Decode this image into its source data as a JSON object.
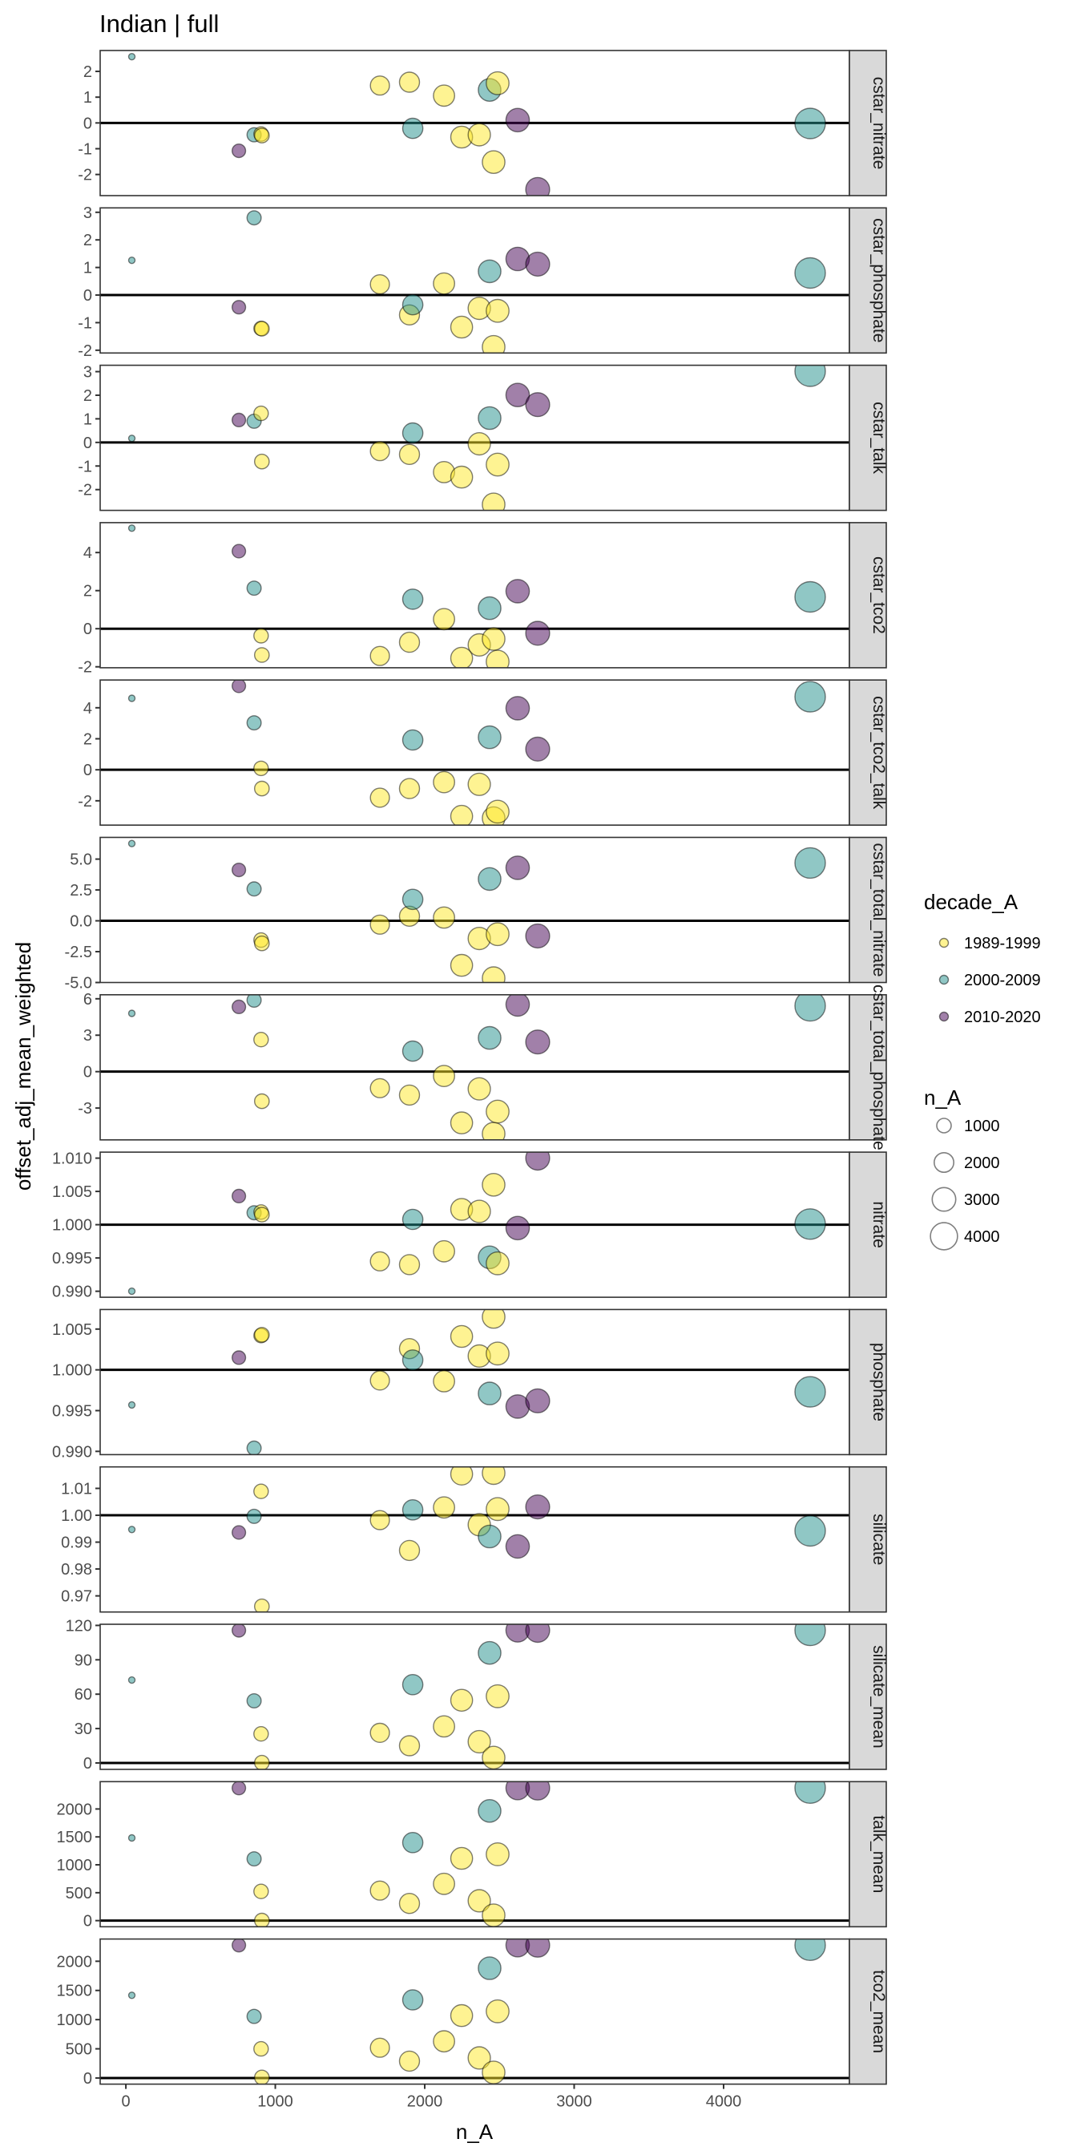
{
  "chart_data": {
    "type": "scatter",
    "title": "Indian | full",
    "xlabel": "n_A",
    "ylabel": "offset_adj_mean_weighted",
    "xlim": [
      -172,
      4842
    ],
    "x_ticks": [
      0,
      1000,
      2000,
      3000,
      4000
    ],
    "x_tick_labels": [
      "0",
      "1000",
      "2000",
      "3000",
      "4000"
    ],
    "hline_y": 0,
    "grid": false,
    "colors": {
      "1989-1999": "#FDE725",
      "2000-2009": "#21908C",
      "2010-2020": "#440154"
    },
    "point_alpha": 0.5,
    "points": [
      {
        "n_A": 40,
        "decade_A": "2000-2009"
      },
      {
        "n_A": 756,
        "decade_A": "2010-2020"
      },
      {
        "n_A": 858,
        "decade_A": "2000-2009"
      },
      {
        "n_A": 905,
        "decade_A": "1989-1999"
      },
      {
        "n_A": 910,
        "decade_A": "1989-1999"
      },
      {
        "n_A": 1700,
        "decade_A": "1989-1999"
      },
      {
        "n_A": 1898,
        "decade_A": "1989-1999"
      },
      {
        "n_A": 1920,
        "decade_A": "2000-2009"
      },
      {
        "n_A": 2129,
        "decade_A": "1989-1999"
      },
      {
        "n_A": 2247,
        "decade_A": "1989-1999"
      },
      {
        "n_A": 2365,
        "decade_A": "1989-1999"
      },
      {
        "n_A": 2434,
        "decade_A": "2000-2009"
      },
      {
        "n_A": 2461,
        "decade_A": "1989-1999"
      },
      {
        "n_A": 2488,
        "decade_A": "1989-1999"
      },
      {
        "n_A": 2622,
        "decade_A": "2010-2020"
      },
      {
        "n_A": 2756,
        "decade_A": "2010-2020"
      },
      {
        "n_A": 4579,
        "decade_A": "2000-2009"
      }
    ],
    "panels": [
      {
        "name": "cstar_nitrate",
        "ylim": [
          -2.82,
          2.81
        ],
        "y_ticks": [
          -2,
          -1,
          0,
          1,
          2
        ],
        "y_tick_labels": [
          "-2",
          "-1",
          "0",
          "1",
          "2"
        ],
        "values": [
          2.57,
          -1.08,
          -0.46,
          -0.43,
          -0.49,
          1.45,
          1.58,
          -0.21,
          1.06,
          -0.55,
          -0.46,
          1.28,
          -1.52,
          1.54,
          0.11,
          -2.58,
          -0.02
        ]
      },
      {
        "name": "cstar_phosphate",
        "ylim": [
          -2.1,
          3.16
        ],
        "y_ticks": [
          -2,
          -1,
          0,
          1,
          2,
          3
        ],
        "y_tick_labels": [
          "-2",
          "-1",
          "0",
          "1",
          "2",
          "3"
        ],
        "values": [
          1.26,
          -0.44,
          2.8,
          -1.21,
          -1.22,
          0.39,
          -0.72,
          -0.35,
          0.42,
          -1.16,
          -0.48,
          0.86,
          -1.88,
          -0.57,
          1.31,
          1.12,
          0.8
        ]
      },
      {
        "name": "cstar_talk",
        "ylim": [
          -2.88,
          3.27
        ],
        "y_ticks": [
          -2,
          -1,
          0,
          1,
          2,
          3
        ],
        "y_tick_labels": [
          "-2",
          "-1",
          "0",
          "1",
          "2",
          "3"
        ],
        "values": [
          0.17,
          0.95,
          0.9,
          1.23,
          -0.81,
          -0.37,
          -0.51,
          0.4,
          -1.26,
          -1.47,
          -0.06,
          1.03,
          -2.63,
          -0.94,
          2.01,
          1.6,
          3.02
        ]
      },
      {
        "name": "cstar_tco2",
        "ylim": [
          -2.05,
          5.57
        ],
        "y_ticks": [
          -2,
          0,
          2,
          4
        ],
        "y_tick_labels": [
          "-2",
          "0",
          "2",
          "4"
        ],
        "values": [
          5.28,
          4.07,
          2.13,
          -0.37,
          -1.38,
          -1.43,
          -0.71,
          1.55,
          0.5,
          -1.55,
          -0.85,
          1.08,
          -0.54,
          -1.73,
          1.97,
          -0.24,
          1.67
        ]
      },
      {
        "name": "cstar_tco2_talk",
        "ylim": [
          -3.57,
          5.79
        ],
        "y_ticks": [
          -2,
          0,
          2,
          4
        ],
        "y_tick_labels": [
          "-2",
          "0",
          "2",
          "4"
        ],
        "values": [
          4.61,
          5.41,
          3.03,
          0.09,
          -1.21,
          -1.8,
          -1.21,
          1.92,
          -0.8,
          -3.0,
          -0.94,
          2.1,
          -3.12,
          -2.7,
          3.97,
          1.33,
          4.71
        ]
      },
      {
        "name": "cstar_total_nitrate",
        "ylim": [
          -5.0,
          6.76
        ],
        "y_ticks": [
          -5.0,
          -2.5,
          0.0,
          2.5,
          5.0
        ],
        "y_tick_labels": [
          "-5.0",
          "-2.5",
          "0.0",
          "2.5",
          "5.0"
        ],
        "values": [
          6.26,
          4.12,
          2.58,
          -1.56,
          -1.83,
          -0.31,
          0.37,
          1.74,
          0.26,
          -3.61,
          -1.43,
          3.39,
          -4.65,
          -1.08,
          4.3,
          -1.23,
          4.69
        ]
      },
      {
        "name": "cstar_total_phosphate",
        "ylim": [
          -5.62,
          6.33
        ],
        "y_ticks": [
          -3,
          0,
          3,
          6
        ],
        "y_tick_labels": [
          "-3",
          "0",
          "3",
          "6"
        ],
        "values": [
          4.8,
          5.33,
          5.89,
          2.64,
          -2.44,
          -1.36,
          -1.93,
          1.69,
          -0.36,
          -4.22,
          -1.42,
          2.78,
          -5.11,
          -3.29,
          5.53,
          2.44,
          5.42
        ]
      },
      {
        "name": "nitrate",
        "ylim": [
          0.9891,
          1.0109
        ],
        "y_ticks": [
          0.99,
          0.995,
          1.0,
          1.005,
          1.01
        ],
        "y_tick_labels": [
          "0.990",
          "0.995",
          "1.000",
          "1.005",
          "1.010"
        ],
        "hline_y": 1,
        "values": [
          0.99,
          1.0043,
          1.0018,
          1.0019,
          1.0015,
          0.9945,
          0.994,
          1.0008,
          0.996,
          1.0023,
          1.002,
          0.9951,
          1.006,
          0.9942,
          0.9995,
          1.01,
          1.0001
        ]
      },
      {
        "name": "phosphate",
        "ylim": [
          0.9896,
          1.0074
        ],
        "y_ticks": [
          0.99,
          0.995,
          1.0,
          1.005
        ],
        "y_tick_labels": [
          "0.990",
          "0.995",
          "1.000",
          "1.005"
        ],
        "hline_y": 1,
        "values": [
          0.9957,
          1.0015,
          0.9904,
          1.0042,
          1.0043,
          0.9987,
          1.0026,
          1.0012,
          0.9986,
          1.0041,
          1.0017,
          0.9971,
          1.0065,
          1.002,
          0.9955,
          0.9962,
          0.9973
        ]
      },
      {
        "name": "silicate",
        "ylim": [
          0.964,
          1.018
        ],
        "y_ticks": [
          0.97,
          0.98,
          0.99,
          1.0,
          1.01
        ],
        "y_tick_labels": [
          "0.97",
          "0.98",
          "0.99",
          "1.00",
          "1.01"
        ],
        "hline_y": 1,
        "values": [
          0.9947,
          0.9936,
          0.9996,
          1.0089,
          0.9661,
          0.9982,
          0.9869,
          1.002,
          1.0029,
          1.0153,
          0.9965,
          0.9921,
          1.0157,
          1.0023,
          0.9884,
          1.0031,
          0.9942
        ]
      },
      {
        "name": "silicate_mean",
        "ylim": [
          -5.6,
          121
        ],
        "y_ticks": [
          0,
          30,
          60,
          90,
          120
        ],
        "y_tick_labels": [
          "0",
          "30",
          "60",
          "90",
          "120"
        ],
        "values": [
          72.3,
          115.7,
          54.2,
          25.4,
          0.2,
          26.3,
          15.0,
          68.3,
          31.9,
          54.7,
          18.5,
          96.0,
          4.7,
          58.2,
          115.7,
          115.7,
          115.7
        ]
      },
      {
        "name": "talk_mean",
        "ylim": [
          -110,
          2490
        ],
        "y_ticks": [
          0,
          500,
          1000,
          1500,
          2000
        ],
        "y_tick_labels": [
          "0",
          "500",
          "1000",
          "1500",
          "2000"
        ],
        "values": [
          1481,
          2375,
          1106,
          524,
          0,
          538,
          308,
          1399,
          659,
          1115,
          356,
          1966,
          96,
          1188,
          2375,
          2375,
          2375
        ]
      },
      {
        "name": "tco2_mean",
        "ylim": [
          -105,
          2381
        ],
        "y_ticks": [
          0,
          500,
          1000,
          1500,
          2000
        ],
        "y_tick_labels": [
          "0",
          "500",
          "1000",
          "1500",
          "2000"
        ],
        "values": [
          1417,
          2275,
          1055,
          500,
          9,
          518,
          289,
          1339,
          628,
          1069,
          344,
          1881,
          96,
          1142,
          2275,
          2275,
          2275
        ]
      }
    ],
    "legend": {
      "placement": "right",
      "color": {
        "title": "decade_A",
        "entries": [
          "1989-1999",
          "2000-2009",
          "2010-2020"
        ]
      },
      "size": {
        "title": "n_A",
        "entries": [
          1000,
          2000,
          3000,
          4000
        ],
        "labels": [
          "1000",
          "2000",
          "3000",
          "4000"
        ]
      }
    }
  }
}
